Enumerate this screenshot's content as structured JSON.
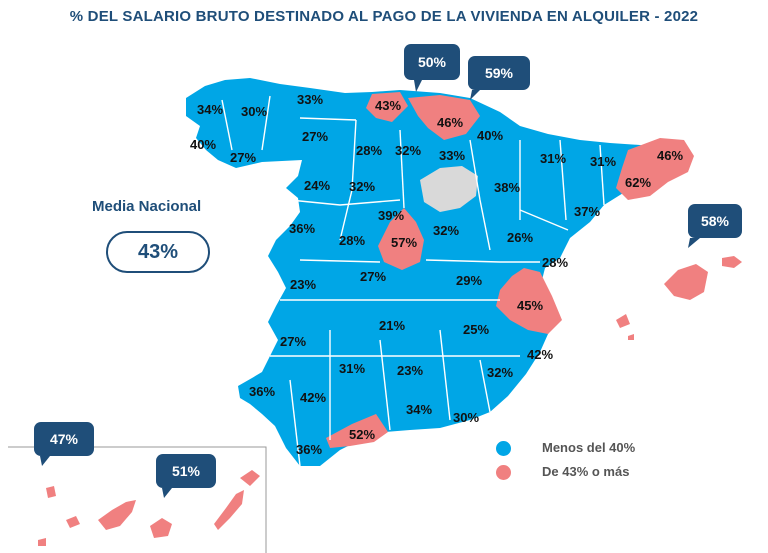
{
  "title": "% DEL SALARIO BRUTO DESTINADO AL PAGO DE LA VIVIENDA EN ALQUILER - 2022",
  "media": {
    "label": "Media Nacional",
    "value": "43%"
  },
  "legend": [
    {
      "label": "Menos del 40%",
      "color": "#00a6e6"
    },
    {
      "label": "De 43% o más",
      "color": "#f08080"
    }
  ],
  "colors": {
    "below": "#00a6e6",
    "above": "#f08080",
    "nodata": "#d9d9d9",
    "callout": "#1f4e79"
  },
  "province_labels": [
    "34%",
    "30%",
    "33%",
    "43%",
    "46%",
    "40%",
    "27%",
    "27%",
    "28%",
    "32%",
    "33%",
    "40%",
    "31%",
    "31%",
    "46%",
    "24%",
    "32%",
    "38%",
    "62%",
    "37%",
    "36%",
    "39%",
    "28%",
    "57%",
    "32%",
    "26%",
    "23%",
    "27%",
    "29%",
    "28%",
    "45%",
    "21%",
    "27%",
    "25%",
    "42%",
    "31%",
    "23%",
    "32%",
    "36%",
    "42%",
    "34%",
    "30%",
    "36%",
    "52%"
  ],
  "callouts": [
    "50%",
    "59%",
    "58%",
    "47%",
    "51%"
  ]
}
